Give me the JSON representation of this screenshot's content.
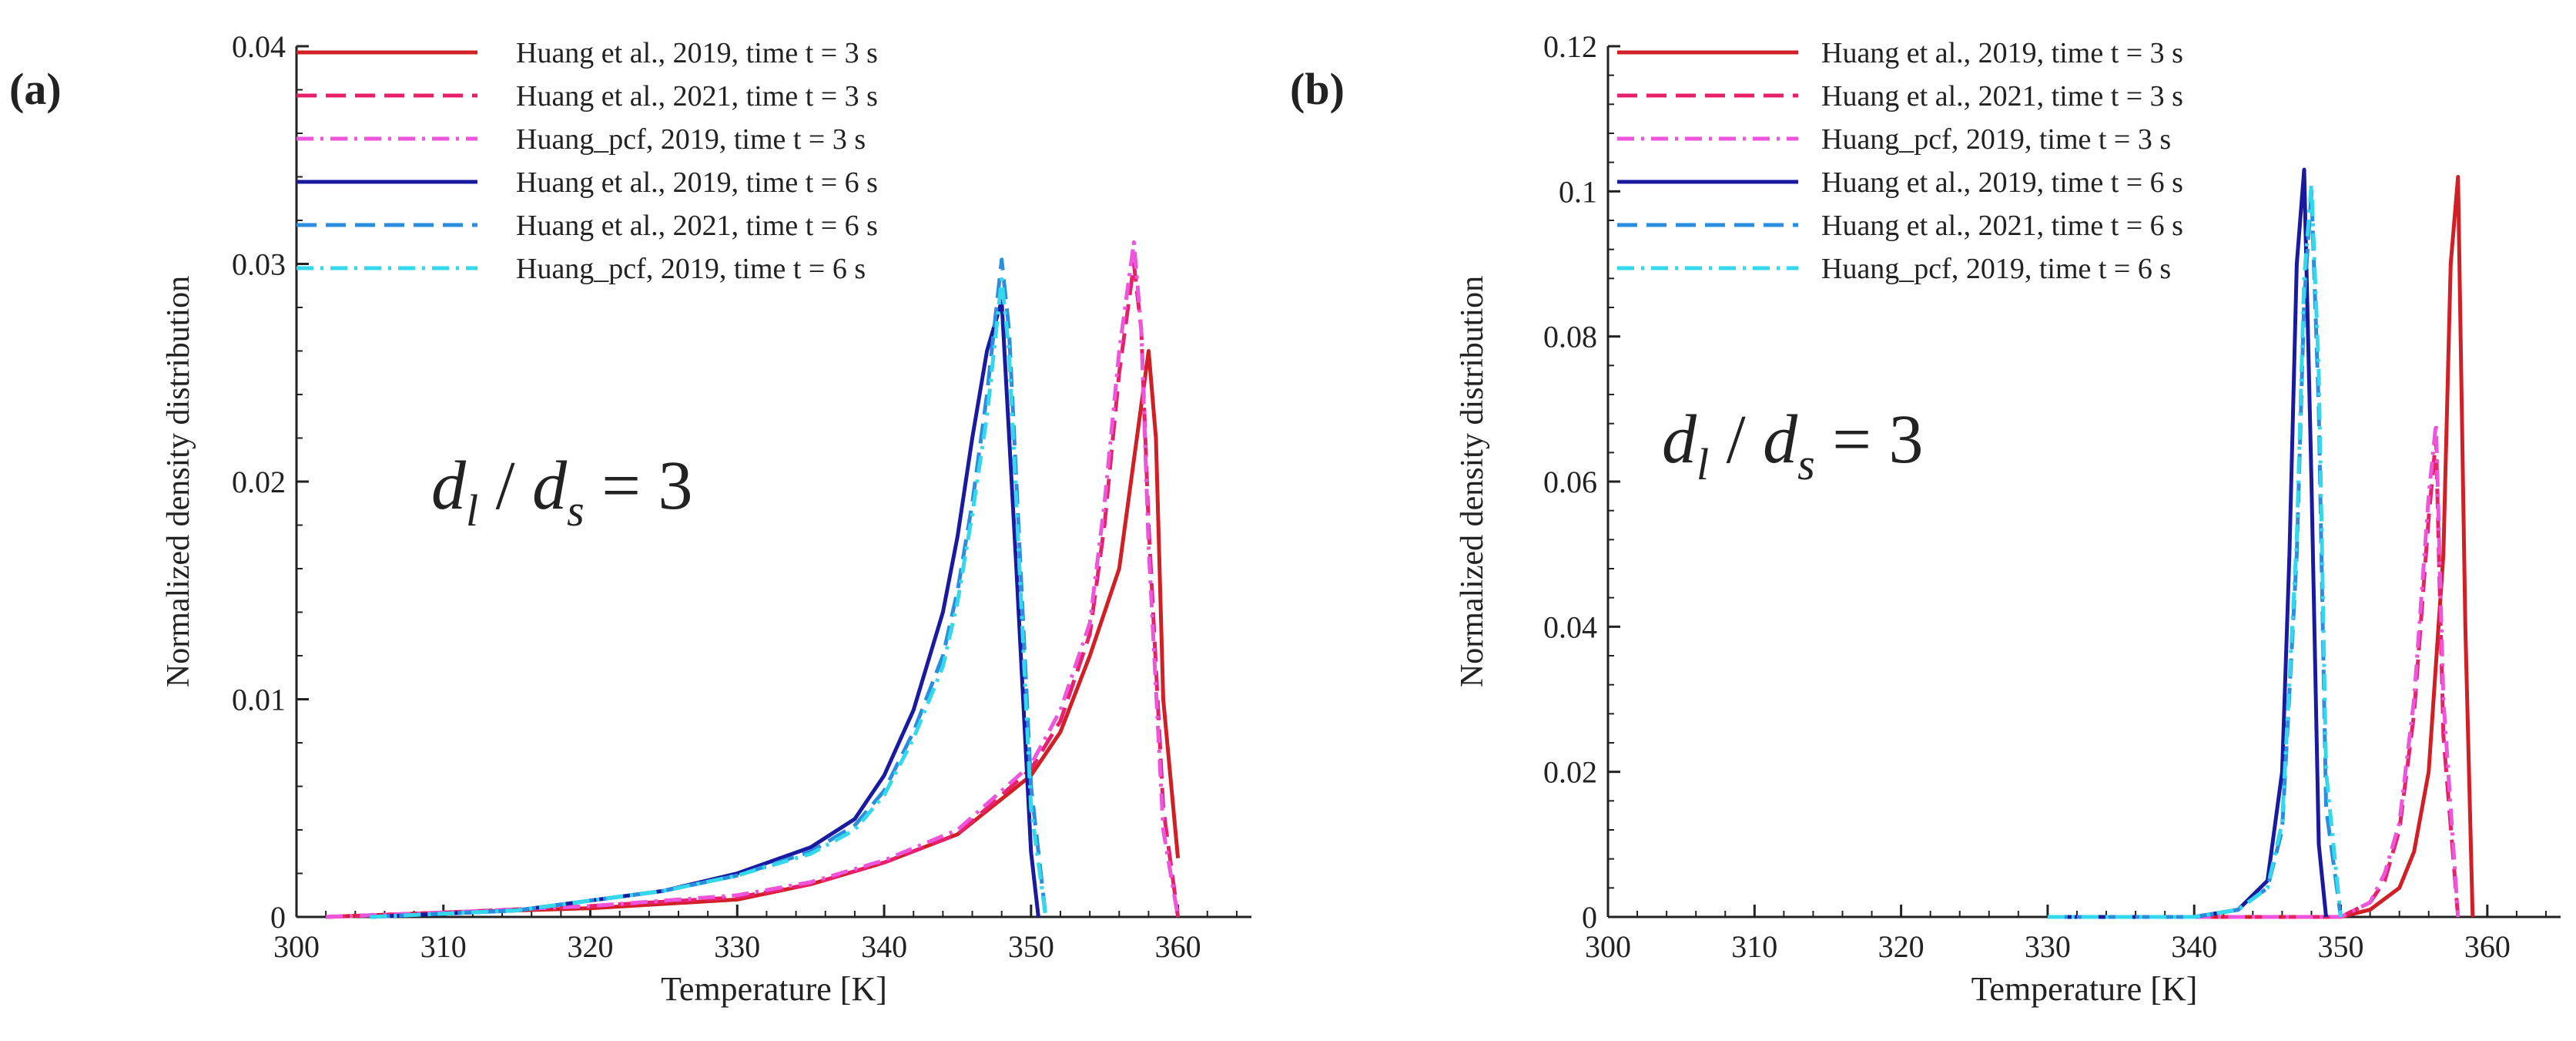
{
  "chart_data": [
    {
      "panel_label": "(a)",
      "type": "line",
      "title": "",
      "xlabel": "Temperature [K]",
      "ylabel": "Normalized density distribution",
      "xlim": [
        300,
        365
      ],
      "ylim": [
        0,
        0.04
      ],
      "xticks": [
        300,
        310,
        320,
        330,
        340,
        350,
        360
      ],
      "yticks": [
        0,
        0.01,
        0.02,
        0.03,
        0.04
      ],
      "ytick_labels": [
        "0",
        "0.01",
        "0.02",
        "0.03",
        "0.04"
      ],
      "annotation": {
        "lhs": "d",
        "lhs_sub": "l",
        "slash": " / ",
        "rhs": "d",
        "rhs_sub": "s",
        "eq": " = 3"
      },
      "legend_position": "top-right",
      "series": [
        {
          "name": "Huang et al., 2019, time t = 3 s",
          "color": "#d21f26",
          "dash": "solid",
          "x": [
            302,
            310,
            320,
            330,
            335,
            340,
            345,
            350,
            352,
            354,
            356,
            357,
            358,
            358.5,
            359,
            360
          ],
          "y": [
            0,
            0.0002,
            0.0004,
            0.0008,
            0.0015,
            0.0025,
            0.0038,
            0.0065,
            0.0085,
            0.012,
            0.016,
            0.021,
            0.026,
            0.022,
            0.01,
            0.0027
          ]
        },
        {
          "name": "Huang et al., 2021, time t = 3 s",
          "color": "#e8206a",
          "dash": "dash",
          "x": [
            302,
            310,
            320,
            330,
            335,
            340,
            345,
            350,
            352,
            354,
            355,
            356,
            357,
            357.5,
            358,
            359,
            360
          ],
          "y": [
            0,
            0.0002,
            0.0005,
            0.0009,
            0.0015,
            0.0025,
            0.0038,
            0.0068,
            0.009,
            0.013,
            0.018,
            0.025,
            0.03,
            0.027,
            0.018,
            0.005,
            0
          ]
        },
        {
          "name": "Huang_pcf, 2019, time t = 3 s",
          "color": "#ee54dc",
          "dash": "dashdot",
          "x": [
            302,
            310,
            320,
            330,
            335,
            340,
            345,
            350,
            352,
            354,
            355,
            356,
            357,
            357.5,
            358,
            359,
            360
          ],
          "y": [
            0,
            0.0002,
            0.0005,
            0.001,
            0.0016,
            0.0026,
            0.004,
            0.007,
            0.0095,
            0.0135,
            0.019,
            0.026,
            0.031,
            0.027,
            0.017,
            0.004,
            0
          ]
        },
        {
          "name": "Huang et al., 2019, time t = 6 s",
          "color": "#1a1aa0",
          "dash": "solid",
          "x": [
            305,
            315,
            325,
            330,
            335,
            338,
            340,
            342,
            344,
            345,
            346,
            347,
            348,
            349,
            350,
            350.5
          ],
          "y": [
            0,
            0.0003,
            0.0012,
            0.002,
            0.0032,
            0.0045,
            0.0065,
            0.0095,
            0.014,
            0.0175,
            0.022,
            0.026,
            0.0283,
            0.016,
            0.003,
            0
          ]
        },
        {
          "name": "Huang et al., 2021, time t = 6 s",
          "color": "#2b8de0",
          "dash": "dash",
          "x": [
            305,
            315,
            325,
            330,
            335,
            338,
            340,
            342,
            344,
            345,
            346,
            347,
            348,
            348.5,
            349,
            350,
            351
          ],
          "y": [
            0,
            0.0003,
            0.0012,
            0.0019,
            0.003,
            0.0042,
            0.0058,
            0.0085,
            0.012,
            0.015,
            0.019,
            0.024,
            0.0302,
            0.027,
            0.02,
            0.006,
            0
          ]
        },
        {
          "name": "Huang_pcf, 2019, time t = 6 s",
          "color": "#33d8ec",
          "dash": "dashdot",
          "x": [
            305,
            315,
            325,
            330,
            335,
            338,
            340,
            342,
            344,
            345,
            346,
            347,
            348,
            348.5,
            349,
            350,
            351
          ],
          "y": [
            0,
            0.0003,
            0.0012,
            0.0019,
            0.0029,
            0.004,
            0.0056,
            0.0082,
            0.0115,
            0.0145,
            0.0185,
            0.023,
            0.0293,
            0.026,
            0.019,
            0.005,
            0
          ]
        }
      ]
    },
    {
      "panel_label": "(b)",
      "type": "line",
      "title": "",
      "xlabel": "Temperature [K]",
      "ylabel": "Normalized density distribution",
      "xlim": [
        300,
        365
      ],
      "ylim": [
        0,
        0.12
      ],
      "xticks": [
        300,
        310,
        320,
        330,
        340,
        350,
        360
      ],
      "yticks": [
        0,
        0.02,
        0.04,
        0.06,
        0.08,
        0.1,
        0.12
      ],
      "ytick_labels": [
        "0",
        "0.02",
        "0.04",
        "0.06",
        "0.08",
        "0.1",
        "0.12"
      ],
      "annotation": {
        "lhs": "d",
        "lhs_sub": "l",
        "slash": " / ",
        "rhs": "d",
        "rhs_sub": "s",
        "eq": " = 3"
      },
      "legend_position": "top-right",
      "series": [
        {
          "name": "Huang et al., 2019, time t = 3 s",
          "color": "#d21f26",
          "dash": "solid",
          "x": [
            340,
            350,
            352,
            354,
            355,
            356,
            357,
            357.5,
            358,
            358.5,
            359
          ],
          "y": [
            0,
            0,
            0.001,
            0.004,
            0.009,
            0.02,
            0.05,
            0.09,
            0.102,
            0.04,
            0
          ]
        },
        {
          "name": "Huang et al., 2021, time t = 3 s",
          "color": "#e8206a",
          "dash": "dash",
          "x": [
            340,
            350,
            352,
            353,
            354,
            355,
            356,
            356.5,
            357,
            358
          ],
          "y": [
            0,
            0,
            0.002,
            0.005,
            0.012,
            0.028,
            0.055,
            0.066,
            0.025,
            0
          ]
        },
        {
          "name": "Huang_pcf, 2019, time t = 3 s",
          "color": "#ee54dc",
          "dash": "dashdot",
          "x": [
            340,
            350,
            352,
            353,
            354,
            355,
            356,
            356.5,
            357,
            358
          ],
          "y": [
            0,
            0,
            0.002,
            0.006,
            0.013,
            0.03,
            0.058,
            0.068,
            0.03,
            0
          ]
        },
        {
          "name": "Huang et al., 2019, time t = 6 s",
          "color": "#1a1aa0",
          "dash": "solid",
          "x": [
            330,
            340,
            343,
            345,
            346,
            346.5,
            347,
            347.5,
            348,
            348.5,
            349
          ],
          "y": [
            0,
            0,
            0.001,
            0.005,
            0.02,
            0.05,
            0.09,
            0.103,
            0.06,
            0.01,
            0
          ]
        },
        {
          "name": "Huang et al., 2021, time t = 6 s",
          "color": "#2b8de0",
          "dash": "dash",
          "x": [
            330,
            340,
            343,
            345,
            346,
            347,
            347.5,
            348,
            348.5,
            349,
            350
          ],
          "y": [
            0,
            0,
            0.001,
            0.004,
            0.012,
            0.05,
            0.085,
            0.1,
            0.07,
            0.015,
            0
          ]
        },
        {
          "name": "Huang_pcf, 2019, time t = 6 s",
          "color": "#33d8ec",
          "dash": "dashdot",
          "x": [
            330,
            340,
            343,
            345,
            346,
            347,
            347.5,
            348,
            348.5,
            349,
            350
          ],
          "y": [
            0,
            0,
            0.001,
            0.004,
            0.013,
            0.052,
            0.088,
            0.101,
            0.075,
            0.02,
            0
          ]
        }
      ]
    }
  ]
}
